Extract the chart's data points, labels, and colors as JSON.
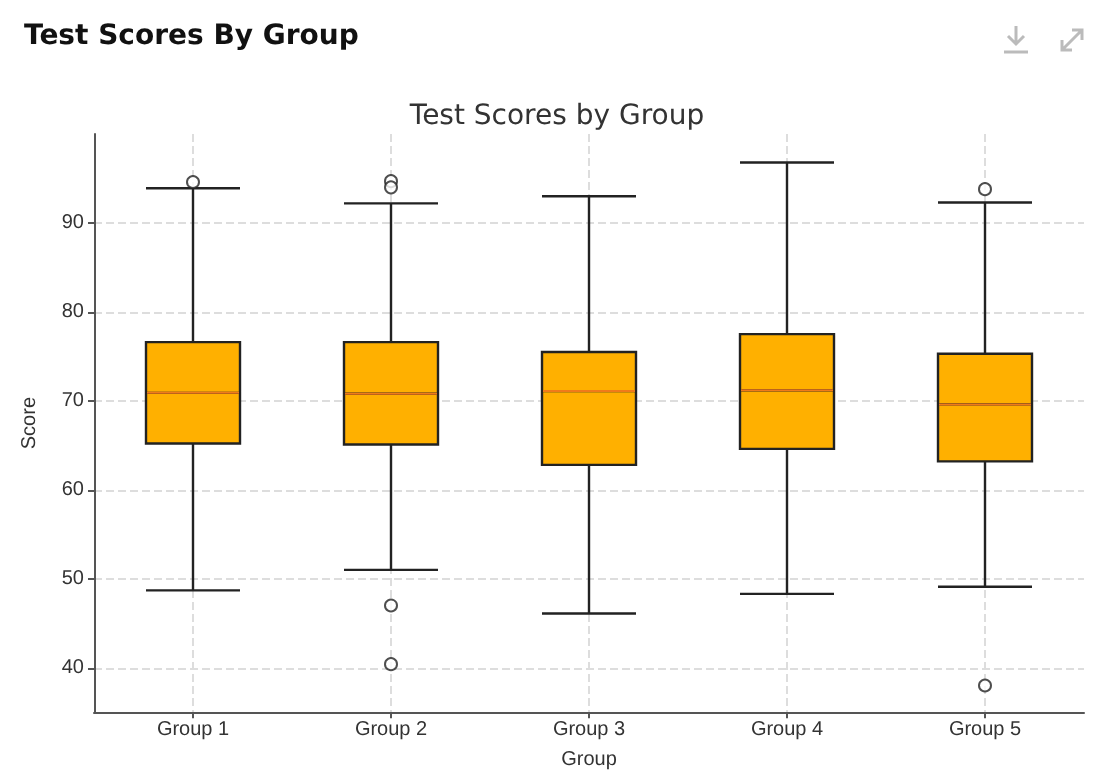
{
  "chart_data": {
    "type": "box",
    "title": "Test Scores By Group",
    "subtitle": "Test Scores by Group",
    "xlabel": "Group",
    "ylabel": "Score",
    "categories": [
      "Group 1",
      "Group 2",
      "Group 3",
      "Group 4",
      "Group 5"
    ],
    "color": "#ffb000",
    "boxes": [
      {
        "low": 48.7,
        "q1": 65.2,
        "median": 70.9,
        "q3": 76.6,
        "high": 93.9,
        "outliers": [
          94.6
        ]
      },
      {
        "low": 51,
        "q1": 65.1,
        "median": 70.8,
        "q3": 76.6,
        "high": 92.2,
        "outliers": [
          94.7,
          94,
          47,
          40.4
        ]
      },
      {
        "low": 46.1,
        "q1": 62.8,
        "median": 71.1,
        "q3": 75.5,
        "high": 93
      },
      {
        "low": 48.3,
        "q1": 64.6,
        "median": 71.2,
        "q3": 77.5,
        "high": 96.8
      },
      {
        "low": 49.1,
        "q1": 63.2,
        "median": 69.6,
        "q3": 75.3,
        "high": 92.3,
        "outliers": [
          93.8,
          38
        ]
      }
    ],
    "ylim": [
      35,
      100
    ],
    "yticks": [
      40,
      50,
      60,
      70,
      80,
      90
    ],
    "grid": true
  }
}
